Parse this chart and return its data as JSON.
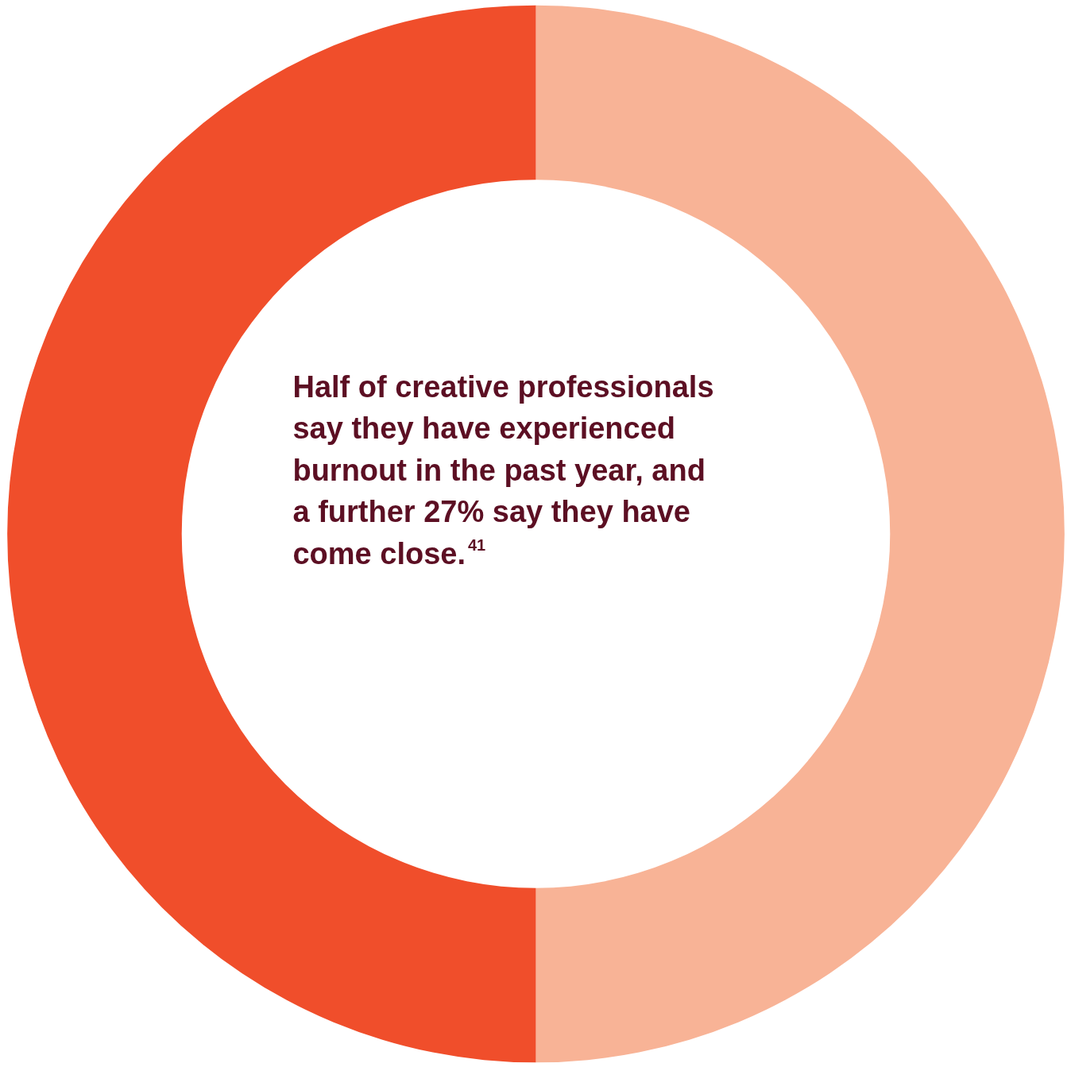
{
  "chart_data": {
    "type": "donut",
    "categories": [
      null,
      null
    ],
    "values": [
      50,
      50
    ],
    "colors": [
      "#f8b396",
      "#f04e2b"
    ],
    "annotations": [
      "Half of creative professionals say they have experienced burnout in the past year, and a further 27% say they have come close.$^{41}$"
    ]
  }
}
